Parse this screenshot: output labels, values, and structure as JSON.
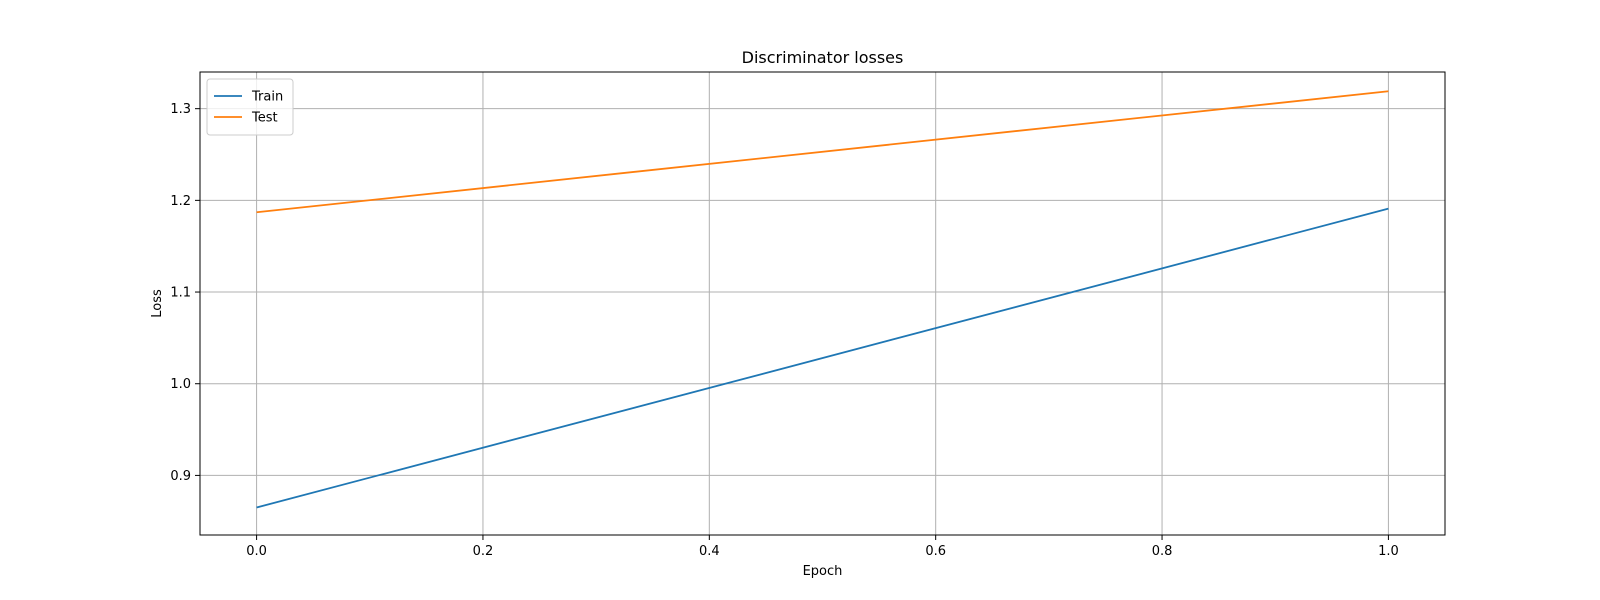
{
  "chart_data": {
    "type": "line",
    "title": "Discriminator losses",
    "xlabel": "Epoch",
    "ylabel": "Loss",
    "xlim": [
      -0.05,
      1.05
    ],
    "ylim": [
      0.835,
      1.34
    ],
    "xticks": [
      0.0,
      0.2,
      0.4,
      0.6,
      0.8,
      1.0
    ],
    "yticks": [
      0.9,
      1.0,
      1.1,
      1.2,
      1.3
    ],
    "grid": true,
    "legend_position": "top-left",
    "series": [
      {
        "name": "Train",
        "color": "#1f77b4",
        "x": [
          0,
          1
        ],
        "y": [
          0.865,
          1.191
        ]
      },
      {
        "name": "Test",
        "color": "#ff7f0e",
        "x": [
          0,
          1
        ],
        "y": [
          1.187,
          1.319
        ]
      }
    ]
  }
}
